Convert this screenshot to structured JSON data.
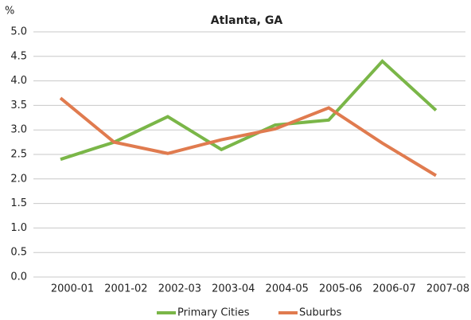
{
  "chart_data": {
    "type": "line",
    "title": "Atlanta, GA",
    "y_label": "%",
    "categories": [
      "2000-01",
      "2001-02",
      "2002-03",
      "2003-04",
      "2004-05",
      "2005-06",
      "2006-07",
      "2007-08"
    ],
    "series": [
      {
        "name": "Primary Cities",
        "color": "#7ab648",
        "values": [
          2.4,
          2.75,
          3.27,
          2.6,
          3.1,
          3.2,
          4.4,
          3.4
        ]
      },
      {
        "name": "Suburbs",
        "color": "#e07b4f",
        "values": [
          3.65,
          2.75,
          2.52,
          2.8,
          3.02,
          3.45,
          2.73,
          2.07
        ]
      }
    ],
    "ylim": [
      0,
      5
    ],
    "yticks": [
      {
        "value": 0,
        "label": "0.0"
      },
      0.5,
      {
        "value": 1,
        "label": "1.0"
      },
      1.5,
      {
        "value": 2,
        "label": "2.0"
      },
      2.5,
      {
        "value": 3,
        "label": "3.0"
      },
      3.5,
      {
        "value": 4,
        "label": "4.0"
      },
      4.5,
      {
        "value": 5,
        "label": "5.0"
      }
    ],
    "grid": true,
    "legend": "bottom"
  }
}
